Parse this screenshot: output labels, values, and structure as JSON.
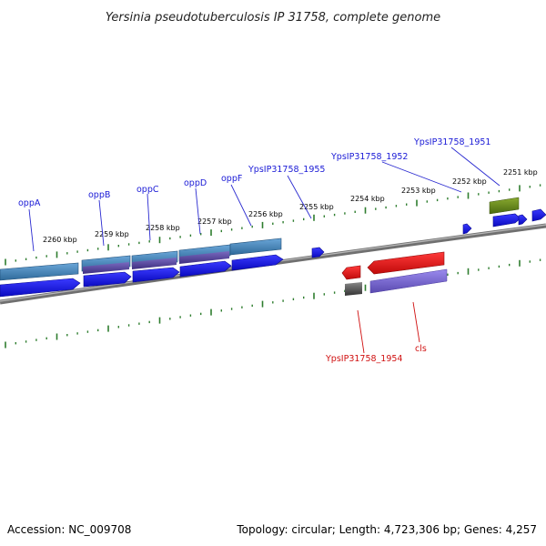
{
  "title": "Yersinia pseudotuberculosis IP 31758, complete genome",
  "footer": {
    "accession": "Accession: NC_009708",
    "summary": "Topology: circular; Length: 4,723,306 bp; Genes: 4,257"
  },
  "ticks": [
    "2260 kbp",
    "2259 kbp",
    "2258 kbp",
    "2257 kbp",
    "2256 kbp",
    "2255 kbp",
    "2254 kbp",
    "2253 kbp",
    "2252 kbp",
    "2251 kbp"
  ],
  "genes_top": [
    "oppA",
    "oppB",
    "oppC",
    "oppD",
    "oppF",
    "YpsIP31758_1955",
    "YpsIP31758_1952",
    "YpsIP31758_1951"
  ],
  "genes_bottom": [
    "YpsIP31758_1954",
    "cls"
  ],
  "colors": {
    "forward_cds": "#1010e8",
    "reverse_cds": "#e81010",
    "forward_feature": "#4a86b8",
    "protein_domain": "#5a4a9c",
    "reverse_domain": "#7a68cc",
    "trna": "#6b8a20",
    "backbone": "#8a8a8a",
    "tick": "#2e7d2e",
    "label_forward": "#1a1ad6",
    "label_reverse": "#d01010"
  }
}
